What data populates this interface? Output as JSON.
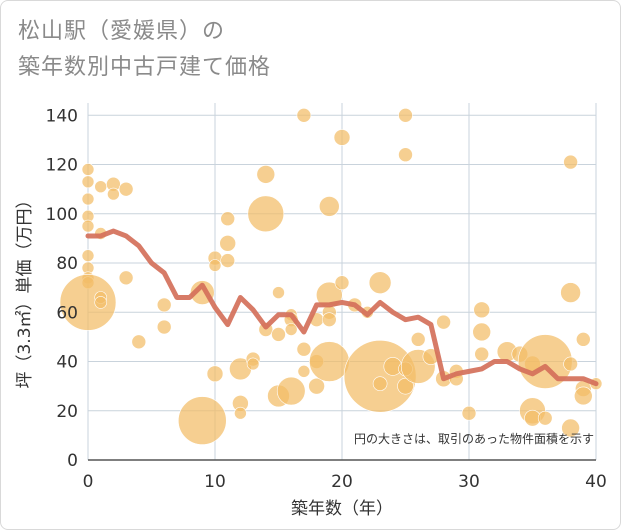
{
  "title_line1": "松山駅（愛媛県）の",
  "title_line2": "築年数別中古戸建て価格",
  "chart_data": {
    "type": "scatter",
    "title": "松山駅（愛媛県）の築年数別中古戸建て価格",
    "xlabel": "築年数（年）",
    "ylabel": "坪（3.3㎡）単価（万円）",
    "xlim": [
      0,
      40
    ],
    "ylim": [
      0,
      145
    ],
    "xticks": [
      0,
      10,
      20,
      30,
      40
    ],
    "yticks": [
      0,
      20,
      40,
      60,
      80,
      100,
      120,
      140
    ],
    "note": "円の大きさは、取引のあった物件面積を示す",
    "colors": {
      "bubble": "#f3bd66",
      "line": "#d4705a",
      "grid": "#c9d3dc"
    },
    "bubbles": [
      {
        "x": 0,
        "y": 118,
        "s": 6
      },
      {
        "x": 0,
        "y": 113,
        "s": 6
      },
      {
        "x": 0,
        "y": 106,
        "s": 6
      },
      {
        "x": 0,
        "y": 99,
        "s": 6
      },
      {
        "x": 0,
        "y": 95,
        "s": 6
      },
      {
        "x": 0,
        "y": 83,
        "s": 6
      },
      {
        "x": 0,
        "y": 78,
        "s": 6
      },
      {
        "x": 0,
        "y": 74,
        "s": 6
      },
      {
        "x": 0,
        "y": 72,
        "s": 6
      },
      {
        "x": 0,
        "y": 64,
        "s": 28
      },
      {
        "x": 1,
        "y": 111,
        "s": 6
      },
      {
        "x": 1,
        "y": 92,
        "s": 6
      },
      {
        "x": 1,
        "y": 66,
        "s": 6
      },
      {
        "x": 1,
        "y": 64,
        "s": 6
      },
      {
        "x": 2,
        "y": 112,
        "s": 7
      },
      {
        "x": 2,
        "y": 108,
        "s": 6
      },
      {
        "x": 3,
        "y": 110,
        "s": 7
      },
      {
        "x": 3,
        "y": 74,
        "s": 7
      },
      {
        "x": 4,
        "y": 48,
        "s": 7
      },
      {
        "x": 6,
        "y": 63,
        "s": 7
      },
      {
        "x": 6,
        "y": 54,
        "s": 7
      },
      {
        "x": 9,
        "y": 68,
        "s": 12
      },
      {
        "x": 9,
        "y": 16,
        "s": 24
      },
      {
        "x": 10,
        "y": 82,
        "s": 7
      },
      {
        "x": 10,
        "y": 79,
        "s": 6
      },
      {
        "x": 10,
        "y": 35,
        "s": 8
      },
      {
        "x": 11,
        "y": 98,
        "s": 7
      },
      {
        "x": 11,
        "y": 88,
        "s": 8
      },
      {
        "x": 11,
        "y": 81,
        "s": 7
      },
      {
        "x": 12,
        "y": 37,
        "s": 11
      },
      {
        "x": 12,
        "y": 23,
        "s": 8
      },
      {
        "x": 12,
        "y": 19,
        "s": 6
      },
      {
        "x": 13,
        "y": 41,
        "s": 7
      },
      {
        "x": 13,
        "y": 39,
        "s": 6
      },
      {
        "x": 14,
        "y": 116,
        "s": 9
      },
      {
        "x": 14,
        "y": 100,
        "s": 18
      },
      {
        "x": 14,
        "y": 53,
        "s": 7
      },
      {
        "x": 15,
        "y": 68,
        "s": 6
      },
      {
        "x": 15,
        "y": 51,
        "s": 7
      },
      {
        "x": 15,
        "y": 26,
        "s": 11
      },
      {
        "x": 16,
        "y": 59,
        "s": 6
      },
      {
        "x": 16,
        "y": 57,
        "s": 7
      },
      {
        "x": 16,
        "y": 53,
        "s": 6
      },
      {
        "x": 16,
        "y": 28,
        "s": 14
      },
      {
        "x": 17,
        "y": 140,
        "s": 7
      },
      {
        "x": 17,
        "y": 45,
        "s": 7
      },
      {
        "x": 17,
        "y": 36,
        "s": 6
      },
      {
        "x": 18,
        "y": 57,
        "s": 7
      },
      {
        "x": 18,
        "y": 40,
        "s": 7
      },
      {
        "x": 18,
        "y": 30,
        "s": 8
      },
      {
        "x": 19,
        "y": 103,
        "s": 10
      },
      {
        "x": 19,
        "y": 67,
        "s": 13
      },
      {
        "x": 19,
        "y": 60,
        "s": 7
      },
      {
        "x": 19,
        "y": 57,
        "s": 7
      },
      {
        "x": 19,
        "y": 40,
        "s": 20
      },
      {
        "x": 20,
        "y": 131,
        "s": 8
      },
      {
        "x": 20,
        "y": 72,
        "s": 7
      },
      {
        "x": 21,
        "y": 63,
        "s": 7
      },
      {
        "x": 22,
        "y": 60,
        "s": 6
      },
      {
        "x": 23,
        "y": 72,
        "s": 11
      },
      {
        "x": 23,
        "y": 34,
        "s": 36
      },
      {
        "x": 23,
        "y": 31,
        "s": 7
      },
      {
        "x": 24,
        "y": 38,
        "s": 9
      },
      {
        "x": 25,
        "y": 140,
        "s": 7
      },
      {
        "x": 25,
        "y": 124,
        "s": 7
      },
      {
        "x": 25,
        "y": 37,
        "s": 7
      },
      {
        "x": 25,
        "y": 30,
        "s": 8
      },
      {
        "x": 26,
        "y": 49,
        "s": 7
      },
      {
        "x": 26,
        "y": 38,
        "s": 17
      },
      {
        "x": 27,
        "y": 42,
        "s": 8
      },
      {
        "x": 28,
        "y": 56,
        "s": 7
      },
      {
        "x": 28,
        "y": 33,
        "s": 8
      },
      {
        "x": 29,
        "y": 36,
        "s": 7
      },
      {
        "x": 29,
        "y": 33,
        "s": 7
      },
      {
        "x": 30,
        "y": 19,
        "s": 7
      },
      {
        "x": 31,
        "y": 61,
        "s": 8
      },
      {
        "x": 31,
        "y": 52,
        "s": 9
      },
      {
        "x": 31,
        "y": 43,
        "s": 7
      },
      {
        "x": 33,
        "y": 44,
        "s": 10
      },
      {
        "x": 34,
        "y": 43,
        "s": 8
      },
      {
        "x": 35,
        "y": 39,
        "s": 8
      },
      {
        "x": 35,
        "y": 20,
        "s": 13
      },
      {
        "x": 35,
        "y": 17,
        "s": 8
      },
      {
        "x": 36,
        "y": 40,
        "s": 27
      },
      {
        "x": 36,
        "y": 17,
        "s": 7
      },
      {
        "x": 38,
        "y": 121,
        "s": 7
      },
      {
        "x": 38,
        "y": 68,
        "s": 10
      },
      {
        "x": 38,
        "y": 39,
        "s": 7
      },
      {
        "x": 38,
        "y": 13,
        "s": 9
      },
      {
        "x": 39,
        "y": 49,
        "s": 7
      },
      {
        "x": 39,
        "y": 29,
        "s": 8
      },
      {
        "x": 39,
        "y": 26,
        "s": 9
      },
      {
        "x": 40,
        "y": 31,
        "s": 6
      }
    ],
    "trend": {
      "x": [
        0,
        1,
        2,
        3,
        4,
        5,
        6,
        7,
        8,
        9,
        10,
        11,
        12,
        13,
        14,
        15,
        16,
        17,
        18,
        19,
        20,
        21,
        22,
        23,
        24,
        25,
        26,
        27,
        28,
        29,
        30,
        31,
        32,
        33,
        34,
        35,
        36,
        37,
        38,
        39,
        40
      ],
      "y": [
        91,
        91,
        93,
        91,
        87,
        80,
        76,
        66,
        66,
        71,
        62,
        55,
        66,
        61,
        54,
        59,
        59,
        52,
        63,
        63,
        64,
        63,
        59,
        64,
        60,
        57,
        58,
        55,
        33,
        35,
        36,
        37,
        40,
        40,
        37,
        35,
        38,
        33,
        33,
        33,
        31
      ]
    }
  }
}
